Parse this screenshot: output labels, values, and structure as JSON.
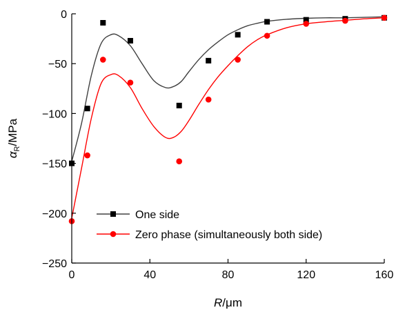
{
  "chart_data": {
    "type": "scatter",
    "title": "",
    "xlabel": {
      "var": "R",
      "unit": "/μm"
    },
    "ylabel": {
      "var": "α",
      "sub": "R",
      "unit": "/MPa"
    },
    "xlim": [
      0,
      160
    ],
    "ylim": [
      -250,
      0
    ],
    "xticks": [
      0,
      40,
      80,
      120,
      160
    ],
    "yticks": [
      0,
      -50,
      -100,
      -150,
      -200,
      -250
    ],
    "xtick_labels": [
      "0",
      "40",
      "80",
      "120",
      "160"
    ],
    "ytick_labels": [
      "0",
      "−50",
      "−100",
      "−150",
      "−200",
      "−250"
    ],
    "grid": false,
    "legend_position": "lower-left",
    "series": [
      {
        "name": "One side",
        "color": "#000000",
        "curve_color": "#404040",
        "marker": "square",
        "points": [
          [
            0,
            -150
          ],
          [
            8,
            -95
          ],
          [
            16,
            -9
          ],
          [
            30,
            -27
          ],
          [
            55,
            -92
          ],
          [
            70,
            -47
          ],
          [
            85,
            -21
          ],
          [
            100,
            -8
          ],
          [
            120,
            -6
          ],
          [
            140,
            -5
          ],
          [
            160,
            -4
          ]
        ],
        "fit": [
          [
            0,
            -148
          ],
          [
            5,
            -110
          ],
          [
            10,
            -62
          ],
          [
            15,
            -30
          ],
          [
            20,
            -21
          ],
          [
            24,
            -22
          ],
          [
            30,
            -32
          ],
          [
            36,
            -50
          ],
          [
            42,
            -67
          ],
          [
            48,
            -74
          ],
          [
            52,
            -73
          ],
          [
            56,
            -68
          ],
          [
            60,
            -58
          ],
          [
            65,
            -46
          ],
          [
            70,
            -36
          ],
          [
            75,
            -28
          ],
          [
            80,
            -21
          ],
          [
            85,
            -16
          ],
          [
            90,
            -12
          ],
          [
            95,
            -9.5
          ],
          [
            100,
            -7.5
          ],
          [
            110,
            -5.5
          ],
          [
            120,
            -4.5
          ],
          [
            130,
            -4
          ],
          [
            140,
            -4
          ],
          [
            150,
            -3.5
          ],
          [
            160,
            -3
          ]
        ]
      },
      {
        "name": "Zero phase (simultaneously both side)",
        "color": "#ff0000",
        "curve_color": "#ff0000",
        "marker": "circle",
        "points": [
          [
            0,
            -208
          ],
          [
            8,
            -142
          ],
          [
            16,
            -46
          ],
          [
            30,
            -69
          ],
          [
            55,
            -148
          ],
          [
            70,
            -86
          ],
          [
            85,
            -46
          ],
          [
            100,
            -22
          ],
          [
            120,
            -10
          ],
          [
            140,
            -7
          ],
          [
            160,
            -4
          ]
        ],
        "fit": [
          [
            0,
            -205
          ],
          [
            5,
            -155
          ],
          [
            10,
            -105
          ],
          [
            15,
            -70
          ],
          [
            20,
            -61
          ],
          [
            24,
            -62
          ],
          [
            30,
            -74
          ],
          [
            36,
            -95
          ],
          [
            42,
            -113
          ],
          [
            48,
            -124
          ],
          [
            52,
            -124
          ],
          [
            56,
            -118
          ],
          [
            60,
            -107
          ],
          [
            65,
            -91
          ],
          [
            70,
            -76
          ],
          [
            75,
            -63
          ],
          [
            80,
            -52
          ],
          [
            85,
            -42
          ],
          [
            90,
            -33
          ],
          [
            95,
            -26
          ],
          [
            100,
            -21
          ],
          [
            110,
            -14
          ],
          [
            120,
            -10
          ],
          [
            130,
            -8
          ],
          [
            140,
            -6.5
          ],
          [
            150,
            -5
          ],
          [
            160,
            -4
          ]
        ]
      }
    ]
  }
}
